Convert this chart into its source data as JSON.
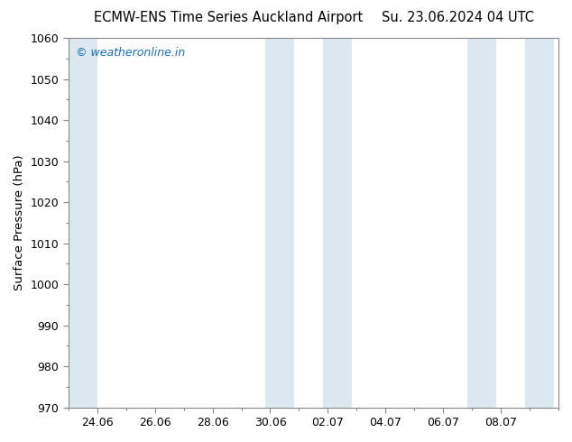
{
  "title_left": "ECMW-ENS Time Series Auckland Airport",
  "title_right": "Su. 23.06.2024 04 UTC",
  "ylabel": "Surface Pressure (hPa)",
  "ylim": [
    970,
    1060
  ],
  "yticks": [
    970,
    980,
    990,
    1000,
    1010,
    1020,
    1030,
    1040,
    1050,
    1060
  ],
  "background_color": "#ffffff",
  "plot_bg_color": "#ffffff",
  "band_color": "#dce8f0",
  "watermark": "© weatheronline.in",
  "watermark_color": "#1a6fb5",
  "title_color": "#000000",
  "axis_color": "#000000",
  "xtick_labels": [
    "24.06",
    "26.06",
    "28.06",
    "30.06",
    "02.07",
    "04.07",
    "06.07",
    "08.07"
  ],
  "band_ranges_days": [
    [
      0.0,
      1.0
    ],
    [
      6.83,
      7.83
    ],
    [
      8.83,
      9.83
    ],
    [
      13.83,
      14.83
    ],
    [
      15.83,
      16.83
    ]
  ],
  "total_days": 16.83,
  "xlim_start": 0.0,
  "xlim_end": 16.83
}
